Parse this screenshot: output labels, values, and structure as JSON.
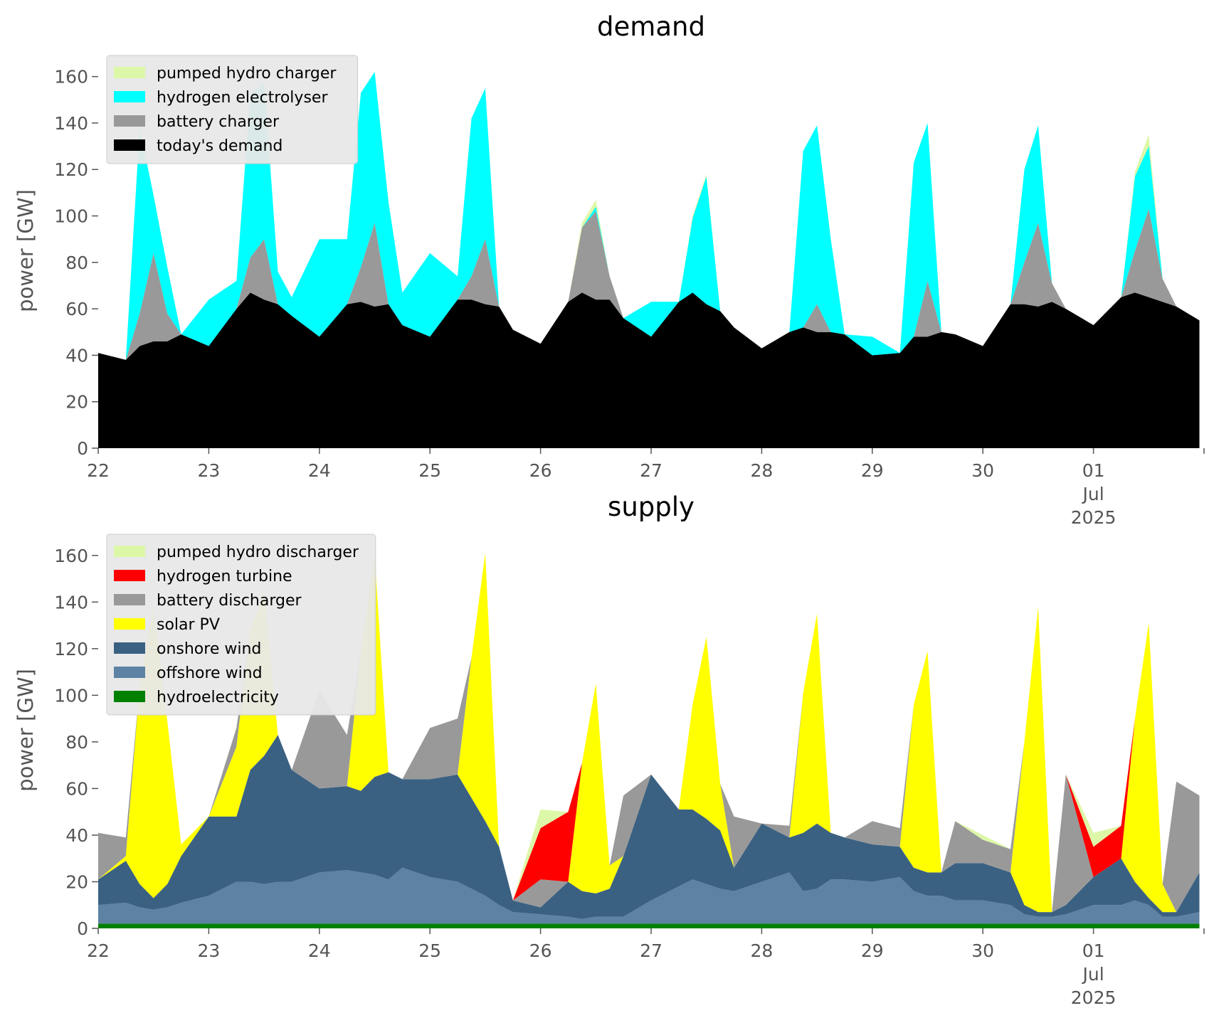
{
  "chart_data": [
    {
      "type": "area",
      "stacked": true,
      "title": "demand",
      "ylabel": "power [GW]",
      "xlabel": "",
      "x_start": "2025-06-22",
      "x_end": "2025-07-02",
      "x_ticks": [
        {
          "date": "2025-06-22",
          "label": [
            "22"
          ]
        },
        {
          "date": "2025-06-23",
          "label": [
            "23"
          ]
        },
        {
          "date": "2025-06-24",
          "label": [
            "24"
          ]
        },
        {
          "date": "2025-06-25",
          "label": [
            "25"
          ]
        },
        {
          "date": "2025-06-26",
          "label": [
            "26"
          ]
        },
        {
          "date": "2025-06-27",
          "label": [
            "27"
          ]
        },
        {
          "date": "2025-06-28",
          "label": [
            "28"
          ]
        },
        {
          "date": "2025-06-29",
          "label": [
            "29"
          ]
        },
        {
          "date": "2025-06-30",
          "label": [
            "30"
          ]
        },
        {
          "date": "2025-07-01",
          "label": [
            "01",
            "Jul",
            "2025"
          ]
        }
      ],
      "ylim": [
        0,
        170
      ],
      "y_ticks": [
        0,
        20,
        40,
        60,
        80,
        100,
        120,
        140,
        160
      ],
      "grid": false,
      "legend_position": "top-left",
      "x": [
        "2025-06-22 00:00",
        "2025-06-22 06:00",
        "2025-06-22 09:00",
        "2025-06-22 12:00",
        "2025-06-22 15:00",
        "2025-06-22 18:00",
        "2025-06-23 00:00",
        "2025-06-23 06:00",
        "2025-06-23 09:00",
        "2025-06-23 12:00",
        "2025-06-23 15:00",
        "2025-06-23 18:00",
        "2025-06-24 00:00",
        "2025-06-24 06:00",
        "2025-06-24 09:00",
        "2025-06-24 12:00",
        "2025-06-24 15:00",
        "2025-06-24 18:00",
        "2025-06-25 00:00",
        "2025-06-25 06:00",
        "2025-06-25 09:00",
        "2025-06-25 12:00",
        "2025-06-25 15:00",
        "2025-06-25 18:00",
        "2025-06-26 00:00",
        "2025-06-26 06:00",
        "2025-06-26 09:00",
        "2025-06-26 12:00",
        "2025-06-26 15:00",
        "2025-06-26 18:00",
        "2025-06-27 00:00",
        "2025-06-27 06:00",
        "2025-06-27 09:00",
        "2025-06-27 12:00",
        "2025-06-27 15:00",
        "2025-06-27 18:00",
        "2025-06-28 00:00",
        "2025-06-28 06:00",
        "2025-06-28 09:00",
        "2025-06-28 12:00",
        "2025-06-28 15:00",
        "2025-06-28 18:00",
        "2025-06-29 00:00",
        "2025-06-29 06:00",
        "2025-06-29 09:00",
        "2025-06-29 12:00",
        "2025-06-29 15:00",
        "2025-06-29 18:00",
        "2025-06-30 00:00",
        "2025-06-30 06:00",
        "2025-06-30 09:00",
        "2025-06-30 12:00",
        "2025-06-30 15:00",
        "2025-06-30 18:00",
        "2025-07-01 00:00",
        "2025-07-01 06:00",
        "2025-07-01 09:00",
        "2025-07-01 12:00",
        "2025-07-01 15:00",
        "2025-07-01 18:00",
        "2025-07-01 23:00"
      ],
      "series": [
        {
          "name": "today's demand",
          "color": "#000000",
          "values": [
            41,
            38,
            44,
            46,
            46,
            49,
            44,
            60,
            67,
            64,
            62,
            57,
            48,
            62,
            63,
            61,
            62,
            53,
            48,
            64,
            64,
            62,
            61,
            51,
            45,
            63,
            67,
            64,
            64,
            56,
            48,
            63,
            67,
            62,
            59,
            52,
            43,
            50,
            52,
            50,
            50,
            49,
            40,
            41,
            48,
            48,
            50,
            49,
            44,
            62,
            62,
            61,
            63,
            60,
            53,
            65,
            67,
            65,
            63,
            61,
            55
          ]
        },
        {
          "name": "battery charger",
          "color": "#999999",
          "values": [
            0,
            0,
            14,
            38,
            12,
            0,
            0,
            0,
            15,
            26,
            0,
            0,
            0,
            0,
            15,
            36,
            0,
            0,
            0,
            0,
            10,
            28,
            0,
            0,
            0,
            0,
            28,
            38,
            10,
            0,
            0,
            0,
            0,
            0,
            0,
            0,
            0,
            0,
            0,
            12,
            0,
            0,
            0,
            0,
            0,
            24,
            0,
            0,
            0,
            0,
            18,
            36,
            8,
            0,
            0,
            0,
            18,
            38,
            10,
            0,
            0
          ]
        },
        {
          "name": "hydrogen electrolyser",
          "color": "#00ffff",
          "values": [
            0,
            0,
            80,
            25,
            20,
            0,
            20,
            12,
            70,
            68,
            14,
            8,
            42,
            28,
            75,
            65,
            44,
            14,
            36,
            10,
            68,
            65,
            0,
            0,
            0,
            0,
            0,
            2,
            0,
            0,
            15,
            0,
            32,
            55,
            0,
            0,
            0,
            0,
            76,
            77,
            40,
            0,
            8,
            0,
            75,
            68,
            0,
            0,
            0,
            0,
            40,
            42,
            0,
            0,
            0,
            0,
            32,
            27,
            0,
            0,
            0
          ]
        },
        {
          "name": "pumped hydro charger",
          "color": "#ddf7a8",
          "values": [
            0,
            0,
            0,
            0,
            0,
            0,
            0,
            0,
            0,
            0,
            0,
            0,
            0,
            0,
            0,
            0,
            0,
            0,
            0,
            0,
            0,
            0,
            0,
            0,
            0,
            0,
            2,
            3,
            0,
            0,
            0,
            0,
            1,
            1,
            0,
            0,
            0,
            0,
            0,
            0,
            0,
            0,
            0,
            0,
            0,
            0,
            0,
            0,
            0,
            0,
            0,
            0,
            0,
            0,
            0,
            0,
            2,
            5,
            0,
            0,
            0
          ]
        }
      ]
    },
    {
      "type": "area",
      "stacked": true,
      "title": "supply",
      "ylabel": "power [GW]",
      "xlabel": "",
      "x_start": "2025-06-22",
      "x_end": "2025-07-02",
      "x_ticks": [
        {
          "date": "2025-06-22",
          "label": [
            "22"
          ]
        },
        {
          "date": "2025-06-23",
          "label": [
            "23"
          ]
        },
        {
          "date": "2025-06-24",
          "label": [
            "24"
          ]
        },
        {
          "date": "2025-06-25",
          "label": [
            "25"
          ]
        },
        {
          "date": "2025-06-26",
          "label": [
            "26"
          ]
        },
        {
          "date": "2025-06-27",
          "label": [
            "27"
          ]
        },
        {
          "date": "2025-06-28",
          "label": [
            "28"
          ]
        },
        {
          "date": "2025-06-29",
          "label": [
            "29"
          ]
        },
        {
          "date": "2025-06-30",
          "label": [
            "30"
          ]
        },
        {
          "date": "2025-07-01",
          "label": [
            "01",
            "Jul",
            "2025"
          ]
        }
      ],
      "ylim": [
        0,
        170
      ],
      "y_ticks": [
        0,
        20,
        40,
        60,
        80,
        100,
        120,
        140,
        160
      ],
      "grid": false,
      "legend_position": "top-left",
      "x": [
        "2025-06-22 00:00",
        "2025-06-22 06:00",
        "2025-06-22 09:00",
        "2025-06-22 12:00",
        "2025-06-22 15:00",
        "2025-06-22 18:00",
        "2025-06-23 00:00",
        "2025-06-23 06:00",
        "2025-06-23 09:00",
        "2025-06-23 12:00",
        "2025-06-23 15:00",
        "2025-06-23 18:00",
        "2025-06-24 00:00",
        "2025-06-24 06:00",
        "2025-06-24 09:00",
        "2025-06-24 12:00",
        "2025-06-24 15:00",
        "2025-06-24 18:00",
        "2025-06-25 00:00",
        "2025-06-25 06:00",
        "2025-06-25 09:00",
        "2025-06-25 12:00",
        "2025-06-25 15:00",
        "2025-06-25 18:00",
        "2025-06-26 00:00",
        "2025-06-26 06:00",
        "2025-06-26 09:00",
        "2025-06-26 12:00",
        "2025-06-26 15:00",
        "2025-06-26 18:00",
        "2025-06-27 00:00",
        "2025-06-27 06:00",
        "2025-06-27 09:00",
        "2025-06-27 12:00",
        "2025-06-27 15:00",
        "2025-06-27 18:00",
        "2025-06-28 00:00",
        "2025-06-28 06:00",
        "2025-06-28 09:00",
        "2025-06-28 12:00",
        "2025-06-28 15:00",
        "2025-06-28 18:00",
        "2025-06-29 00:00",
        "2025-06-29 06:00",
        "2025-06-29 09:00",
        "2025-06-29 12:00",
        "2025-06-29 15:00",
        "2025-06-29 18:00",
        "2025-06-30 00:00",
        "2025-06-30 06:00",
        "2025-06-30 09:00",
        "2025-06-30 12:00",
        "2025-06-30 15:00",
        "2025-06-30 18:00",
        "2025-07-01 00:00",
        "2025-07-01 06:00",
        "2025-07-01 09:00",
        "2025-07-01 12:00",
        "2025-07-01 15:00",
        "2025-07-01 18:00",
        "2025-07-01 23:00"
      ],
      "series": [
        {
          "name": "hydroelectricity",
          "color": "#008000",
          "values": [
            2,
            2,
            2,
            2,
            2,
            2,
            2,
            2,
            2,
            2,
            2,
            2,
            2,
            2,
            2,
            2,
            2,
            2,
            2,
            2,
            2,
            2,
            2,
            2,
            2,
            2,
            2,
            2,
            2,
            2,
            2,
            2,
            2,
            2,
            2,
            2,
            2,
            2,
            2,
            2,
            2,
            2,
            2,
            2,
            2,
            2,
            2,
            2,
            2,
            2,
            2,
            2,
            2,
            2,
            2,
            2,
            2,
            2,
            2,
            2,
            2
          ]
        },
        {
          "name": "offshore wind",
          "color": "#5d82a3",
          "values": [
            8,
            9,
            7,
            6,
            7,
            9,
            12,
            18,
            18,
            17,
            18,
            18,
            22,
            23,
            22,
            21,
            19,
            24,
            20,
            18,
            15,
            12,
            8,
            5,
            4,
            3,
            2,
            3,
            3,
            3,
            10,
            16,
            19,
            17,
            15,
            14,
            18,
            22,
            14,
            15,
            19,
            19,
            18,
            20,
            14,
            12,
            12,
            10,
            10,
            8,
            4,
            3,
            3,
            4,
            8,
            8,
            10,
            8,
            3,
            3,
            5
          ]
        },
        {
          "name": "onshore wind",
          "color": "#3b6182",
          "values": [
            11,
            18,
            10,
            5,
            10,
            20,
            34,
            28,
            48,
            55,
            63,
            48,
            36,
            36,
            35,
            42,
            46,
            38,
            42,
            46,
            39,
            32,
            25,
            5,
            3,
            15,
            12,
            10,
            12,
            26,
            54,
            33,
            30,
            28,
            25,
            10,
            25,
            15,
            25,
            28,
            20,
            18,
            16,
            13,
            10,
            10,
            10,
            16,
            16,
            14,
            4,
            2,
            2,
            4,
            12,
            20,
            8,
            3,
            2,
            2,
            17
          ]
        },
        {
          "name": "solar PV",
          "color": "#ffff00",
          "values": [
            0,
            2,
            85,
            125,
            70,
            5,
            0,
            30,
            60,
            70,
            0,
            0,
            0,
            0,
            60,
            95,
            0,
            0,
            0,
            0,
            60,
            115,
            0,
            0,
            0,
            0,
            55,
            90,
            10,
            0,
            0,
            0,
            45,
            78,
            20,
            0,
            0,
            0,
            60,
            90,
            0,
            0,
            0,
            0,
            70,
            95,
            0,
            0,
            0,
            0,
            70,
            131,
            0,
            0,
            0,
            0,
            70,
            118,
            12,
            0,
            0
          ]
        },
        {
          "name": "battery discharger",
          "color": "#999999",
          "values": [
            20,
            8,
            0,
            0,
            0,
            0,
            0,
            8,
            0,
            0,
            0,
            0,
            42,
            22,
            0,
            0,
            0,
            0,
            22,
            24,
            0,
            0,
            0,
            0,
            12,
            0,
            0,
            0,
            0,
            26,
            0,
            0,
            0,
            0,
            0,
            22,
            0,
            5,
            0,
            0,
            0,
            0,
            10,
            8,
            0,
            0,
            0,
            18,
            10,
            10,
            0,
            0,
            0,
            56,
            0,
            0,
            0,
            0,
            0,
            56,
            33
          ]
        },
        {
          "name": "hydrogen turbine",
          "color": "#ff0000",
          "values": [
            0,
            0,
            0,
            0,
            0,
            0,
            0,
            0,
            0,
            0,
            0,
            0,
            0,
            0,
            0,
            0,
            0,
            0,
            0,
            0,
            0,
            0,
            0,
            0,
            22,
            30,
            0,
            0,
            0,
            0,
            0,
            0,
            0,
            0,
            0,
            0,
            0,
            0,
            0,
            0,
            0,
            0,
            0,
            0,
            0,
            0,
            0,
            0,
            0,
            0,
            0,
            0,
            0,
            0,
            13,
            14,
            0,
            0,
            0,
            0,
            0
          ]
        },
        {
          "name": "pumped hydro discharger",
          "color": "#ddf7a8",
          "values": [
            0,
            0,
            0,
            0,
            0,
            0,
            0,
            0,
            0,
            0,
            0,
            0,
            0,
            0,
            0,
            0,
            0,
            0,
            0,
            0,
            0,
            0,
            0,
            0,
            8,
            0,
            0,
            0,
            0,
            0,
            0,
            0,
            0,
            0,
            0,
            0,
            0,
            0,
            0,
            0,
            0,
            0,
            0,
            0,
            0,
            0,
            0,
            0,
            2,
            0,
            0,
            0,
            0,
            0,
            6,
            0,
            0,
            0,
            0,
            0,
            0
          ]
        }
      ]
    }
  ]
}
